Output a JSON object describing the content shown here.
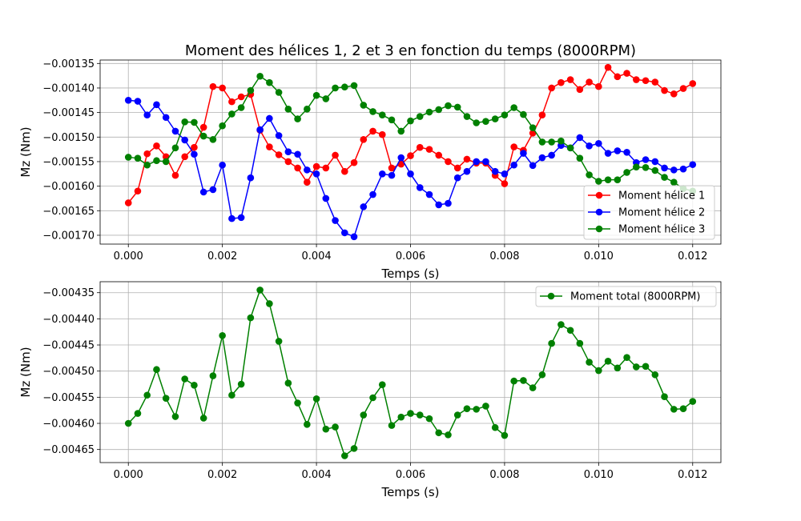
{
  "chart_data": [
    {
      "type": "line",
      "title": "Moment des hélices 1, 2 et 3 en fonction du temps (8000RPM)",
      "xlabel": "Temps (s)",
      "ylabel": "Mz (Nm)",
      "xlim": [
        -0.0006,
        0.0126
      ],
      "ylim": [
        -0.001718,
        -0.001343
      ],
      "x_ticks": [
        0.0,
        0.002,
        0.004,
        0.006,
        0.008,
        0.01,
        0.012
      ],
      "x_tick_labels": [
        "0.000",
        "0.002",
        "0.004",
        "0.006",
        "0.008",
        "0.010",
        "0.012"
      ],
      "y_ticks": [
        -0.0017,
        -0.00165,
        -0.0016,
        -0.00155,
        -0.0015,
        -0.00145,
        -0.0014,
        -0.00135
      ],
      "y_tick_labels": [
        "−0.00170",
        "−0.00165",
        "−0.00160",
        "−0.00155",
        "−0.00150",
        "−0.00145",
        "−0.00140",
        "−0.00135"
      ],
      "grid": true,
      "legend_position": "lower-right",
      "x": [
        0.0,
        0.0002,
        0.0004,
        0.0006,
        0.0008,
        0.001,
        0.0012,
        0.0014,
        0.0016,
        0.0018,
        0.002,
        0.0022,
        0.0024,
        0.0026,
        0.0028,
        0.003,
        0.0032,
        0.0034,
        0.0036,
        0.0038,
        0.004,
        0.0042,
        0.0044,
        0.0046,
        0.0048,
        0.005,
        0.0052,
        0.0054,
        0.0056,
        0.0058,
        0.006,
        0.0062,
        0.0064,
        0.0066,
        0.0068,
        0.007,
        0.0072,
        0.0074,
        0.0076,
        0.0078,
        0.008,
        0.0082,
        0.0084,
        0.0086,
        0.0088,
        0.009,
        0.0092,
        0.0094,
        0.0096,
        0.0098,
        0.01,
        0.0102,
        0.0104,
        0.0106,
        0.0108,
        0.011,
        0.0112,
        0.0114,
        0.0116,
        0.0118,
        0.012
      ],
      "series": [
        {
          "name": "Moment hélice 1",
          "color": "#ff0000",
          "values": [
            -0.001634,
            -0.00161,
            -0.001534,
            -0.001518,
            -0.00154,
            -0.001578,
            -0.00154,
            -0.001521,
            -0.00148,
            -0.001397,
            -0.0014,
            -0.001428,
            -0.001418,
            -0.001413,
            -0.001486,
            -0.00152,
            -0.001536,
            -0.00155,
            -0.001563,
            -0.001592,
            -0.00156,
            -0.001563,
            -0.001537,
            -0.00157,
            -0.001552,
            -0.001505,
            -0.001488,
            -0.001495,
            -0.001563,
            -0.001555,
            -0.001538,
            -0.001521,
            -0.001525,
            -0.001537,
            -0.00155,
            -0.001563,
            -0.001545,
            -0.001553,
            -0.001553,
            -0.001578,
            -0.001595,
            -0.00152,
            -0.001527,
            -0.001492,
            -0.001455,
            -0.0014,
            -0.001389,
            -0.001383,
            -0.001403,
            -0.001388,
            -0.001397,
            -0.001358,
            -0.001377,
            -0.00137,
            -0.001383,
            -0.001385,
            -0.001388,
            -0.001405,
            -0.001412,
            -0.001401,
            -0.001391
          ]
        },
        {
          "name": "Moment hélice 2",
          "color": "#0000ff",
          "values": [
            -0.001425,
            -0.001427,
            -0.001455,
            -0.001434,
            -0.00146,
            -0.001488,
            -0.001506,
            -0.001535,
            -0.001612,
            -0.001607,
            -0.001557,
            -0.001666,
            -0.001664,
            -0.001583,
            -0.001485,
            -0.001462,
            -0.001497,
            -0.00153,
            -0.001535,
            -0.001567,
            -0.001575,
            -0.001625,
            -0.00167,
            -0.001695,
            -0.001703,
            -0.001642,
            -0.001617,
            -0.001575,
            -0.001578,
            -0.001542,
            -0.001575,
            -0.001603,
            -0.001617,
            -0.001638,
            -0.001635,
            -0.001583,
            -0.00157,
            -0.00155,
            -0.00155,
            -0.00157,
            -0.001575,
            -0.001557,
            -0.001533,
            -0.001558,
            -0.001542,
            -0.001537,
            -0.001517,
            -0.001522,
            -0.001501,
            -0.001518,
            -0.001513,
            -0.001533,
            -0.001528,
            -0.001531,
            -0.001552,
            -0.001546,
            -0.00155,
            -0.001563,
            -0.001567,
            -0.001565,
            -0.001556
          ]
        },
        {
          "name": "Moment hélice 3",
          "color": "#008000",
          "values": [
            -0.001541,
            -0.001543,
            -0.001557,
            -0.001548,
            -0.00155,
            -0.001522,
            -0.001469,
            -0.00147,
            -0.001498,
            -0.001505,
            -0.001477,
            -0.001453,
            -0.00144,
            -0.001405,
            -0.001376,
            -0.001389,
            -0.001409,
            -0.001443,
            -0.001463,
            -0.001443,
            -0.001415,
            -0.001422,
            -0.0014,
            -0.001398,
            -0.001395,
            -0.001435,
            -0.001448,
            -0.001455,
            -0.001465,
            -0.001488,
            -0.001467,
            -0.001458,
            -0.001449,
            -0.001444,
            -0.001436,
            -0.001439,
            -0.001458,
            -0.001471,
            -0.001468,
            -0.001463,
            -0.001455,
            -0.00144,
            -0.001454,
            -0.001481,
            -0.00151,
            -0.00151,
            -0.001508,
            -0.001522,
            -0.001543,
            -0.001577,
            -0.00159,
            -0.001587,
            -0.001587,
            -0.001572,
            -0.001561,
            -0.001562,
            -0.001568,
            -0.001582,
            -0.001592,
            -0.001605,
            -0.00161
          ]
        }
      ]
    },
    {
      "type": "line",
      "title": "",
      "xlabel": "Temps (s)",
      "ylabel": "Mz (Nm)",
      "xlim": [
        -0.0006,
        0.0126
      ],
      "ylim": [
        -0.004675,
        -0.004329
      ],
      "x_ticks": [
        0.0,
        0.002,
        0.004,
        0.006,
        0.008,
        0.01,
        0.012
      ],
      "x_tick_labels": [
        "0.000",
        "0.002",
        "0.004",
        "0.006",
        "0.008",
        "0.010",
        "0.012"
      ],
      "y_ticks": [
        -0.00465,
        -0.0046,
        -0.00455,
        -0.0045,
        -0.00445,
        -0.0044,
        -0.00435
      ],
      "y_tick_labels": [
        "−0.00465",
        "−0.00460",
        "−0.00455",
        "−0.00450",
        "−0.00445",
        "−0.00440",
        "−0.00435"
      ],
      "grid": true,
      "legend_position": "top-right",
      "x": [
        0.0,
        0.0002,
        0.0004,
        0.0006,
        0.0008,
        0.001,
        0.0012,
        0.0014,
        0.0016,
        0.0018,
        0.002,
        0.0022,
        0.0024,
        0.0026,
        0.0028,
        0.003,
        0.0032,
        0.0034,
        0.0036,
        0.0038,
        0.004,
        0.0042,
        0.0044,
        0.0046,
        0.0048,
        0.005,
        0.0052,
        0.0054,
        0.0056,
        0.0058,
        0.006,
        0.0062,
        0.0064,
        0.0066,
        0.0068,
        0.007,
        0.0072,
        0.0074,
        0.0076,
        0.0078,
        0.008,
        0.0082,
        0.0084,
        0.0086,
        0.0088,
        0.009,
        0.0092,
        0.0094,
        0.0096,
        0.0098,
        0.01,
        0.0102,
        0.0104,
        0.0106,
        0.0108,
        0.011,
        0.0112,
        0.0114,
        0.0116,
        0.0118,
        0.012
      ],
      "series": [
        {
          "name": "Moment total (8000RPM)",
          "color": "#008000",
          "values": [
            -0.0046,
            -0.004581,
            -0.004546,
            -0.004497,
            -0.004552,
            -0.004587,
            -0.004515,
            -0.004527,
            -0.00459,
            -0.004509,
            -0.004432,
            -0.004546,
            -0.004525,
            -0.004398,
            -0.004345,
            -0.004371,
            -0.004443,
            -0.004523,
            -0.004561,
            -0.004602,
            -0.004553,
            -0.004611,
            -0.004607,
            -0.004662,
            -0.004648,
            -0.004584,
            -0.004551,
            -0.004526,
            -0.004604,
            -0.004588,
            -0.004581,
            -0.004584,
            -0.004591,
            -0.004618,
            -0.004622,
            -0.004584,
            -0.004572,
            -0.004573,
            -0.004567,
            -0.004608,
            -0.004623,
            -0.004519,
            -0.004518,
            -0.004532,
            -0.004507,
            -0.004447,
            -0.004411,
            -0.004422,
            -0.004447,
            -0.004483,
            -0.004499,
            -0.004481,
            -0.004494,
            -0.004474,
            -0.004492,
            -0.004491,
            -0.004507,
            -0.004549,
            -0.004573,
            -0.004572,
            -0.004558
          ]
        }
      ]
    }
  ]
}
